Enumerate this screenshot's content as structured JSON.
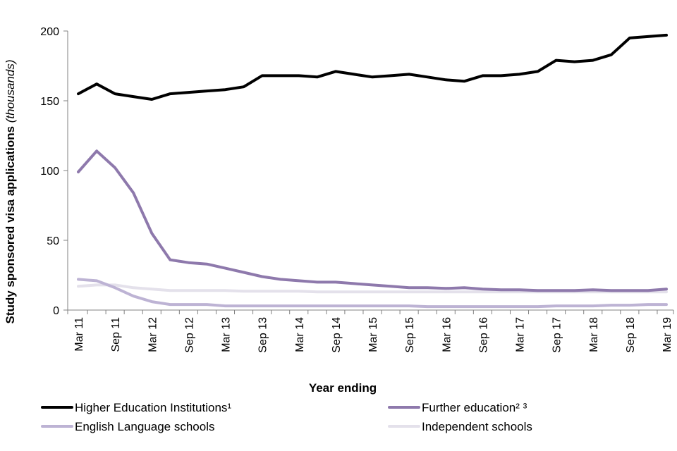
{
  "chart_data": {
    "type": "line",
    "title": "",
    "xlabel": "Year ending",
    "ylabel_main": "Study sponsored visa applications ",
    "ylabel_unit": "(thousands)",
    "ylim": [
      0,
      200
    ],
    "yticks": [
      0,
      50,
      100,
      150,
      200
    ],
    "x": [
      "Mar 11",
      "Jun 11",
      "Sep 11",
      "Dec 11",
      "Mar 12",
      "Jun 12",
      "Sep 12",
      "Dec 12",
      "Mar 13",
      "Jun 13",
      "Sep 13",
      "Dec 13",
      "Mar 14",
      "Jun 14",
      "Sep 14",
      "Dec 14",
      "Mar 15",
      "Jun 15",
      "Sep 15",
      "Dec 15",
      "Mar 16",
      "Jun 16",
      "Sep 16",
      "Dec 16",
      "Mar 17",
      "Jun 17",
      "Sep 17",
      "Dec 17",
      "Mar 18",
      "Jun 18",
      "Sep 18",
      "Dec 18",
      "Mar 19"
    ],
    "xtick_labels": [
      "Mar 11",
      "Sep 11",
      "Mar 12",
      "Sep 12",
      "Mar 13",
      "Sep 13",
      "Mar 14",
      "Sep 14",
      "Mar 15",
      "Sep 15",
      "Mar 16",
      "Sep 16",
      "Mar 17",
      "Sep 17",
      "Mar 18",
      "Sep 18",
      "Mar 19"
    ],
    "grid": false,
    "legend_position": "bottom",
    "series": [
      {
        "name": "Higher Education Institutions¹",
        "color": "#000000",
        "values": [
          155,
          162,
          155,
          153,
          151,
          155,
          156,
          157,
          158,
          160,
          168,
          168,
          168,
          167,
          171,
          169,
          167,
          168,
          169,
          167,
          165,
          164,
          168,
          168,
          169,
          171,
          179,
          178,
          179,
          183,
          195,
          196,
          197
        ]
      },
      {
        "name": "Further education² ³",
        "color": "#8e79ac",
        "values": [
          99,
          114,
          102,
          84,
          55,
          36,
          34,
          33,
          30,
          27,
          24,
          22,
          21,
          20,
          20,
          19,
          18,
          17,
          16,
          16,
          15.5,
          16,
          15,
          14.5,
          14.5,
          14,
          14,
          14,
          14.5,
          14,
          14,
          14,
          15
        ]
      },
      {
        "name": "English Language schools",
        "color": "#bdb3d4",
        "values": [
          22,
          21,
          16,
          10,
          6,
          4,
          4,
          4,
          3,
          3,
          3,
          3,
          3,
          3,
          3,
          3,
          3,
          3,
          3,
          2.5,
          2.5,
          2.5,
          2.5,
          2.5,
          2.5,
          2.5,
          3,
          3,
          3,
          3.5,
          3.5,
          4,
          4
        ]
      },
      {
        "name": "Independent schools",
        "color": "#e4e1eb",
        "values": [
          17,
          18,
          18,
          16,
          15,
          14,
          14,
          14,
          14,
          13.5,
          13.5,
          13.5,
          13.5,
          13,
          13,
          13,
          13,
          13,
          13,
          13,
          13,
          13,
          13,
          13,
          13,
          13,
          13,
          13,
          13,
          13,
          13,
          13,
          13
        ]
      }
    ]
  }
}
